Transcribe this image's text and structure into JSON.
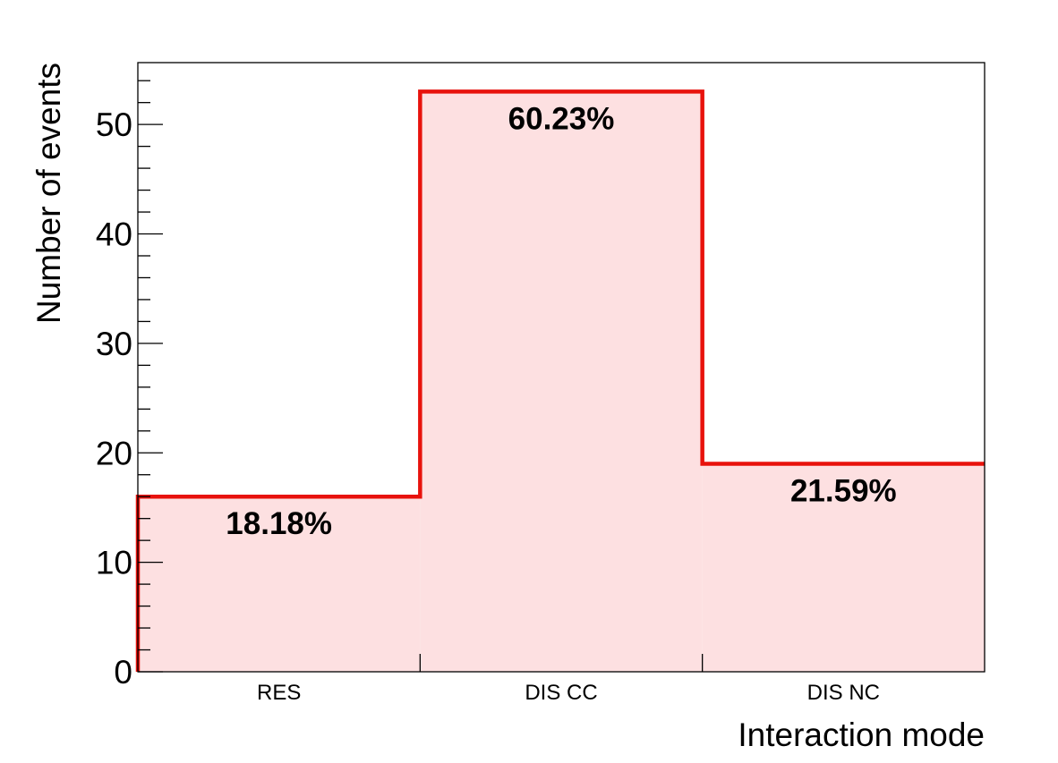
{
  "chart_data": {
    "type": "bar",
    "categories": [
      "RES",
      "DIS CC",
      "DIS NC"
    ],
    "values": [
      16,
      53,
      19
    ],
    "data_labels": [
      "18.18%",
      "60.23%",
      "21.59%"
    ],
    "xlabel": "Interaction mode",
    "ylabel": "Number of events",
    "ylim": [
      0,
      55.65
    ],
    "yticks": [
      0,
      10,
      20,
      30,
      40,
      50
    ],
    "yminor_step": 2,
    "grid": false,
    "legend": "none",
    "colors": {
      "line": "#e8120c",
      "fill": "#fde0e1",
      "axis": "#000000"
    }
  }
}
